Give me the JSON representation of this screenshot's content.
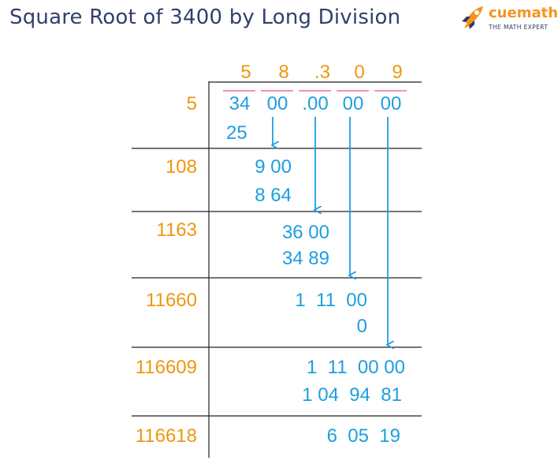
{
  "title": "Square Root of 3400 by Long Division",
  "logo": {
    "name": "cuemath",
    "tagline": "THE MATH EXPERT",
    "icon": "rocket-icon"
  },
  "colors": {
    "title": "#333f6b",
    "orange": "#f0960f",
    "blue": "#1e9ee0",
    "pair_bar": "#e8748a",
    "line": "#222222"
  },
  "quotient": [
    "5",
    "8",
    ".3",
    "0",
    "9"
  ],
  "dividend": [
    "34",
    "00",
    ".00",
    "00",
    "00"
  ],
  "steps": [
    {
      "divisor": "108",
      "carry": "9 00",
      "subtract": "8 64"
    },
    {
      "divisor": "1163",
      "carry": "36 00",
      "subtract": "34 89"
    },
    {
      "divisor": "11660",
      "carry": "1  11  00",
      "subtract": "0"
    },
    {
      "divisor": "116609",
      "carry": "1  11  00 00",
      "subtract": "1 04  94  81"
    }
  ],
  "first": {
    "divisor": "5",
    "subtract": "25"
  },
  "remainder": {
    "divisor": "116618",
    "value": "6  05  19"
  }
}
